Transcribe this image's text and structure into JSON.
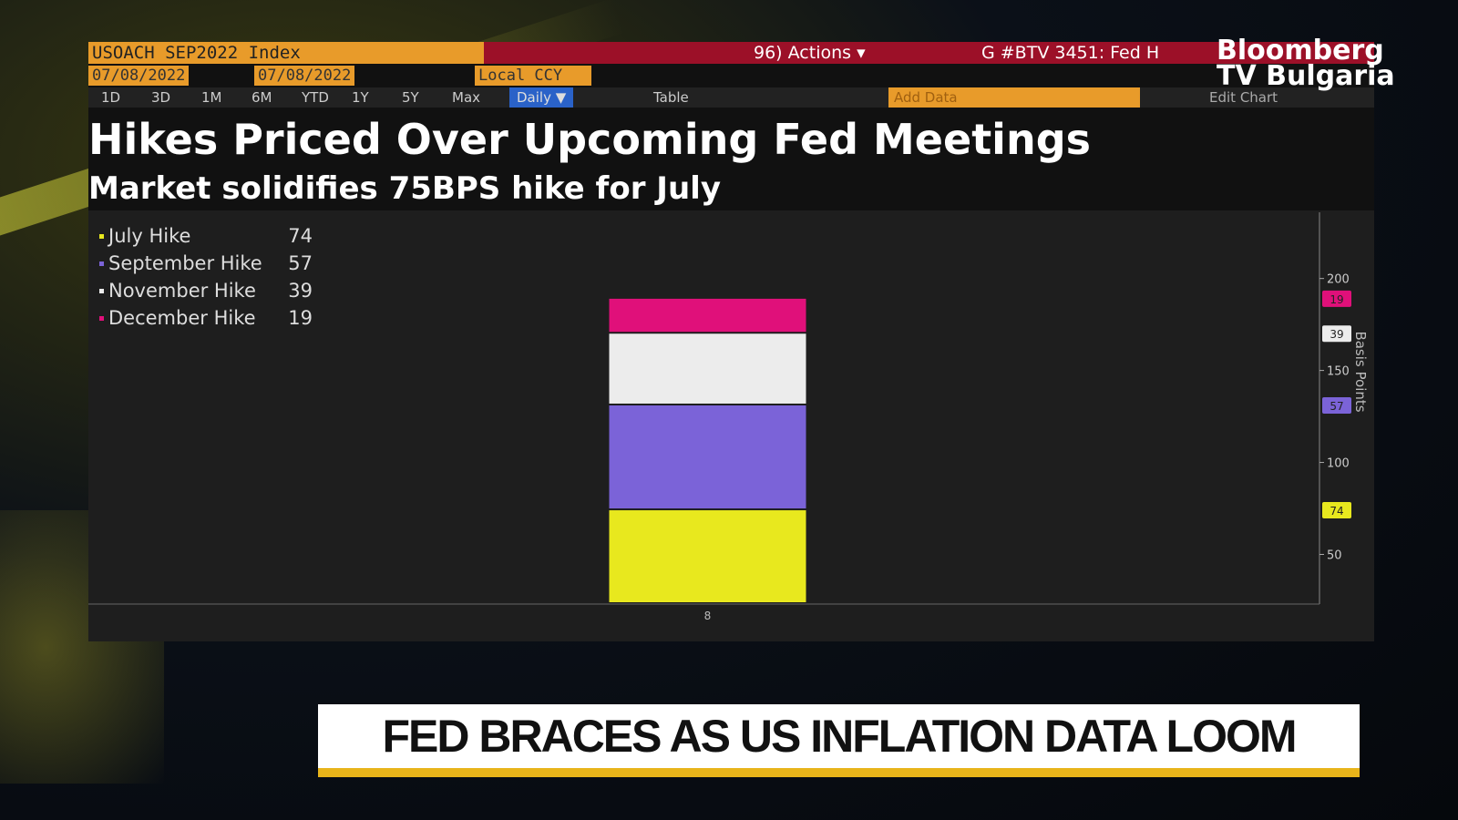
{
  "header": {
    "security": "USOACH SEP2022 Index",
    "actions": "96) Actions ▾",
    "news": "G #BTV 3451: Fed H",
    "start_date": "07/08/2022",
    "end_date": "07/08/2022",
    "currency": "Local CCY",
    "ranges": [
      "1D",
      "3D",
      "1M",
      "6M",
      "YTD",
      "1Y",
      "5Y",
      "Max"
    ],
    "frequency": "Daily ▼",
    "table": "Table",
    "add_data": "Add Data",
    "edit_chart": "Edit Chart"
  },
  "logo": {
    "line1": "Bloomberg",
    "line2": "TV Bulgaria"
  },
  "chart_data": {
    "type": "stacked_bar",
    "title": "Hikes Priced Over Upcoming Fed Meetings",
    "subtitle": "Market solidifies 75BPS hike for July",
    "y_label": "Basis Points",
    "categories": [
      "8"
    ],
    "series": [
      {
        "name": "July Hike",
        "color": "#e8e81e",
        "values": [
          74
        ]
      },
      {
        "name": "September Hike",
        "color": "#7b63d8",
        "values": [
          57
        ]
      },
      {
        "name": "November Hike",
        "color": "#ececec",
        "values": [
          39
        ]
      },
      {
        "name": "December Hike",
        "color": "#e0107a",
        "values": [
          19
        ]
      }
    ],
    "ylim": [
      23,
      236
    ],
    "yticks": [
      50,
      100,
      150,
      200
    ],
    "axis_side": "right",
    "legend": "upper left"
  },
  "ticker": "FED BRACES AS US INFLATION DATA LOOM"
}
